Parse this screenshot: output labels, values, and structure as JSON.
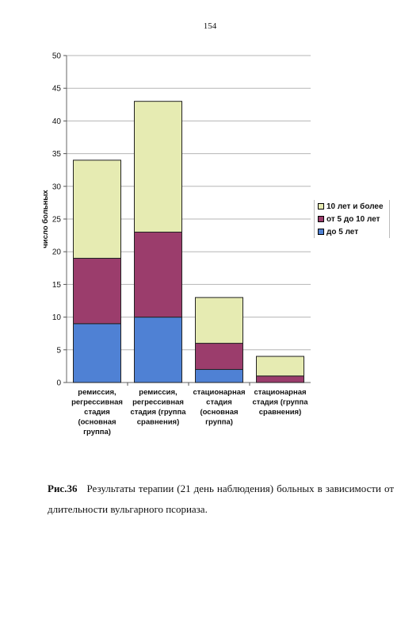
{
  "page_number": "154",
  "caption": {
    "label": "Рис.36",
    "text": "Результаты терапии (21 день наблюдения) больных в зависимости от длительности вульгарного псориаза."
  },
  "chart_data": {
    "type": "bar",
    "stacked": true,
    "title": "",
    "xlabel": "",
    "ylabel": "число больных",
    "ylim": [
      0,
      50
    ],
    "yticks": [
      0,
      5,
      10,
      15,
      20,
      25,
      30,
      35,
      40,
      45,
      50
    ],
    "grid": true,
    "legend_position": "right",
    "categories": [
      [
        "ремиссия,",
        "регрессивная",
        "стадия",
        "(основная",
        "группа)"
      ],
      [
        "ремиссия,",
        "регрессивная",
        "стадия (группа",
        "сравнения)"
      ],
      [
        "стационарная",
        "стадия",
        "(основная",
        "группа)"
      ],
      [
        "стационарная",
        "стадия (группа",
        "сравнения)"
      ]
    ],
    "series": [
      {
        "name": "до 5 лет",
        "color": "#4f81d4",
        "values": [
          9,
          10,
          2,
          0
        ]
      },
      {
        "name": "от 5 до 10 лет",
        "color": "#9b3d6c",
        "values": [
          10,
          13,
          4,
          1
        ]
      },
      {
        "name": "10 лет и более",
        "color": "#e6ebb2",
        "values": [
          15,
          20,
          7,
          3
        ]
      }
    ]
  }
}
